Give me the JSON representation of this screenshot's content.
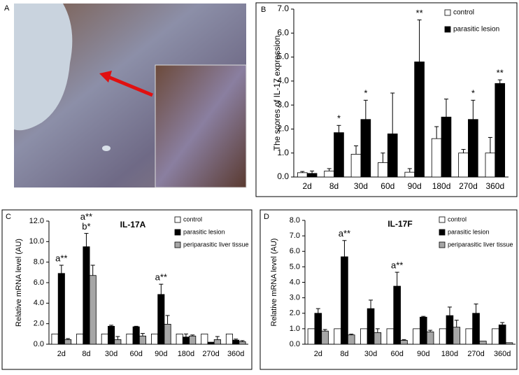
{
  "image_panel": {
    "label": "A"
  },
  "chart_data": [
    {
      "type": "bar",
      "panel_label": "B",
      "ylabel": "The scores of IL-17 expression",
      "categories": [
        "2d",
        "8d",
        "30d",
        "60d",
        "90d",
        "180d",
        "270d",
        "360d"
      ],
      "ylim": [
        0,
        7
      ],
      "yticks": [
        {
          "value": 0,
          "label": "0.0"
        },
        {
          "value": 1,
          "label": "1.0"
        },
        {
          "value": 2,
          "label": "2.0"
        },
        {
          "value": 3,
          "label": "3.0"
        },
        {
          "value": 4,
          "label": "4.0"
        },
        {
          "value": 5,
          "label": "5.0"
        },
        {
          "value": 6,
          "label": "6.0"
        },
        {
          "value": 7,
          "label": "7.0"
        }
      ],
      "grid": false,
      "legend": "top-right",
      "series": [
        {
          "name": "control",
          "color": "#ffffff",
          "values": [
            0.18,
            0.25,
            0.95,
            0.6,
            0.2,
            1.6,
            1.0,
            1.0
          ],
          "errors": [
            0.05,
            0.1,
            0.35,
            0.4,
            0.15,
            0.5,
            0.15,
            0.65
          ],
          "annotations": [
            null,
            null,
            null,
            null,
            null,
            null,
            null,
            null
          ]
        },
        {
          "name": "parasitic lesion",
          "color": "#000000",
          "values": [
            0.15,
            1.85,
            2.4,
            1.8,
            4.8,
            2.5,
            2.4,
            3.9
          ],
          "errors": [
            0.1,
            0.3,
            0.8,
            1.7,
            1.75,
            0.75,
            0.8,
            0.15
          ],
          "annotations": [
            null,
            [
              "*"
            ],
            [
              "*"
            ],
            null,
            [
              "**"
            ],
            null,
            [
              "*"
            ],
            [
              "**"
            ]
          ]
        }
      ]
    },
    {
      "type": "bar",
      "panel_label": "C",
      "title": "IL-17A",
      "ylabel": "Relative mRNA level (AU)",
      "categories": [
        "2d",
        "8d",
        "30d",
        "60d",
        "90d",
        "180d",
        "270d",
        "360d"
      ],
      "ylim": [
        0,
        12
      ],
      "yticks": [
        {
          "value": 0,
          "label": "0.0"
        },
        {
          "value": 2,
          "label": "2.0"
        },
        {
          "value": 4,
          "label": "4.0"
        },
        {
          "value": 6,
          "label": "6.0"
        },
        {
          "value": 8,
          "label": "8.0"
        },
        {
          "value": 10,
          "label": "10.0"
        },
        {
          "value": 12,
          "label": "12.0"
        }
      ],
      "grid": false,
      "legend": "top-right",
      "series": [
        {
          "name": "control",
          "color": "#ffffff",
          "values": [
            1.0,
            1.0,
            1.0,
            1.0,
            1.0,
            1.0,
            1.0,
            1.0
          ],
          "errors": [
            null,
            null,
            null,
            null,
            null,
            null,
            null,
            null
          ],
          "annotations": [
            null,
            null,
            null,
            null,
            null,
            null,
            null,
            null
          ]
        },
        {
          "name": "parasitic lesion",
          "color": "#000000",
          "values": [
            6.9,
            9.5,
            1.75,
            1.7,
            4.85,
            0.7,
            0.2,
            0.4
          ],
          "errors": [
            0.8,
            1.3,
            0.1,
            0.05,
            1.0,
            0.3,
            null,
            0.1
          ],
          "annotations": [
            [
              "a**"
            ],
            [
              "a**",
              "b*"
            ],
            null,
            null,
            [
              "a**"
            ],
            null,
            null,
            null
          ]
        },
        {
          "name": "periparasitic liver tissue",
          "color": "#a6a6a6",
          "values": [
            0.45,
            6.7,
            0.45,
            0.8,
            1.95,
            0.8,
            0.45,
            0.25
          ],
          "errors": [
            0.1,
            1.0,
            0.3,
            0.25,
            0.85,
            0.1,
            0.3,
            0.1
          ],
          "annotations": [
            null,
            null,
            null,
            null,
            null,
            null,
            null,
            null
          ]
        }
      ]
    },
    {
      "type": "bar",
      "panel_label": "D",
      "title": "IL-17F",
      "ylabel": "Relative mRNA level (AU)",
      "categories": [
        "2d",
        "8d",
        "30d",
        "60d",
        "90d",
        "180d",
        "270d",
        "360d"
      ],
      "ylim": [
        0,
        8
      ],
      "yticks": [
        {
          "value": 0,
          "label": "0.0"
        },
        {
          "value": 1,
          "label": "1.0"
        },
        {
          "value": 2,
          "label": "2.0"
        },
        {
          "value": 3,
          "label": "3.0"
        },
        {
          "value": 4,
          "label": "4.0"
        },
        {
          "value": 5,
          "label": "5.0"
        },
        {
          "value": 6,
          "label": "6.0"
        },
        {
          "value": 7,
          "label": "7.0"
        },
        {
          "value": 8,
          "label": "8.0"
        }
      ],
      "grid": false,
      "legend": "top-right",
      "series": [
        {
          "name": "control",
          "color": "#ffffff",
          "values": [
            1.0,
            1.0,
            1.0,
            1.0,
            1.0,
            1.0,
            1.0,
            1.0
          ],
          "errors": [
            null,
            null,
            null,
            null,
            null,
            null,
            null,
            null
          ],
          "annotations": [
            null,
            null,
            null,
            null,
            null,
            null,
            null,
            null
          ]
        },
        {
          "name": "parasitic lesion",
          "color": "#000000",
          "values": [
            2.0,
            5.65,
            2.3,
            3.75,
            1.75,
            1.85,
            2.0,
            1.25
          ],
          "errors": [
            0.3,
            1.05,
            0.55,
            0.9,
            0.05,
            0.55,
            0.6,
            0.15
          ],
          "annotations": [
            null,
            [
              "a**"
            ],
            null,
            [
              "a**"
            ],
            null,
            null,
            null,
            null
          ]
        },
        {
          "name": "periparasitic liver tissue",
          "color": "#a6a6a6",
          "values": [
            0.85,
            0.6,
            0.75,
            0.25,
            0.8,
            1.1,
            0.2,
            0.1
          ],
          "errors": [
            0.1,
            0.05,
            0.25,
            0.05,
            0.1,
            0.45,
            null,
            null
          ],
          "annotations": [
            null,
            null,
            null,
            null,
            null,
            null,
            null,
            null
          ]
        }
      ]
    }
  ]
}
